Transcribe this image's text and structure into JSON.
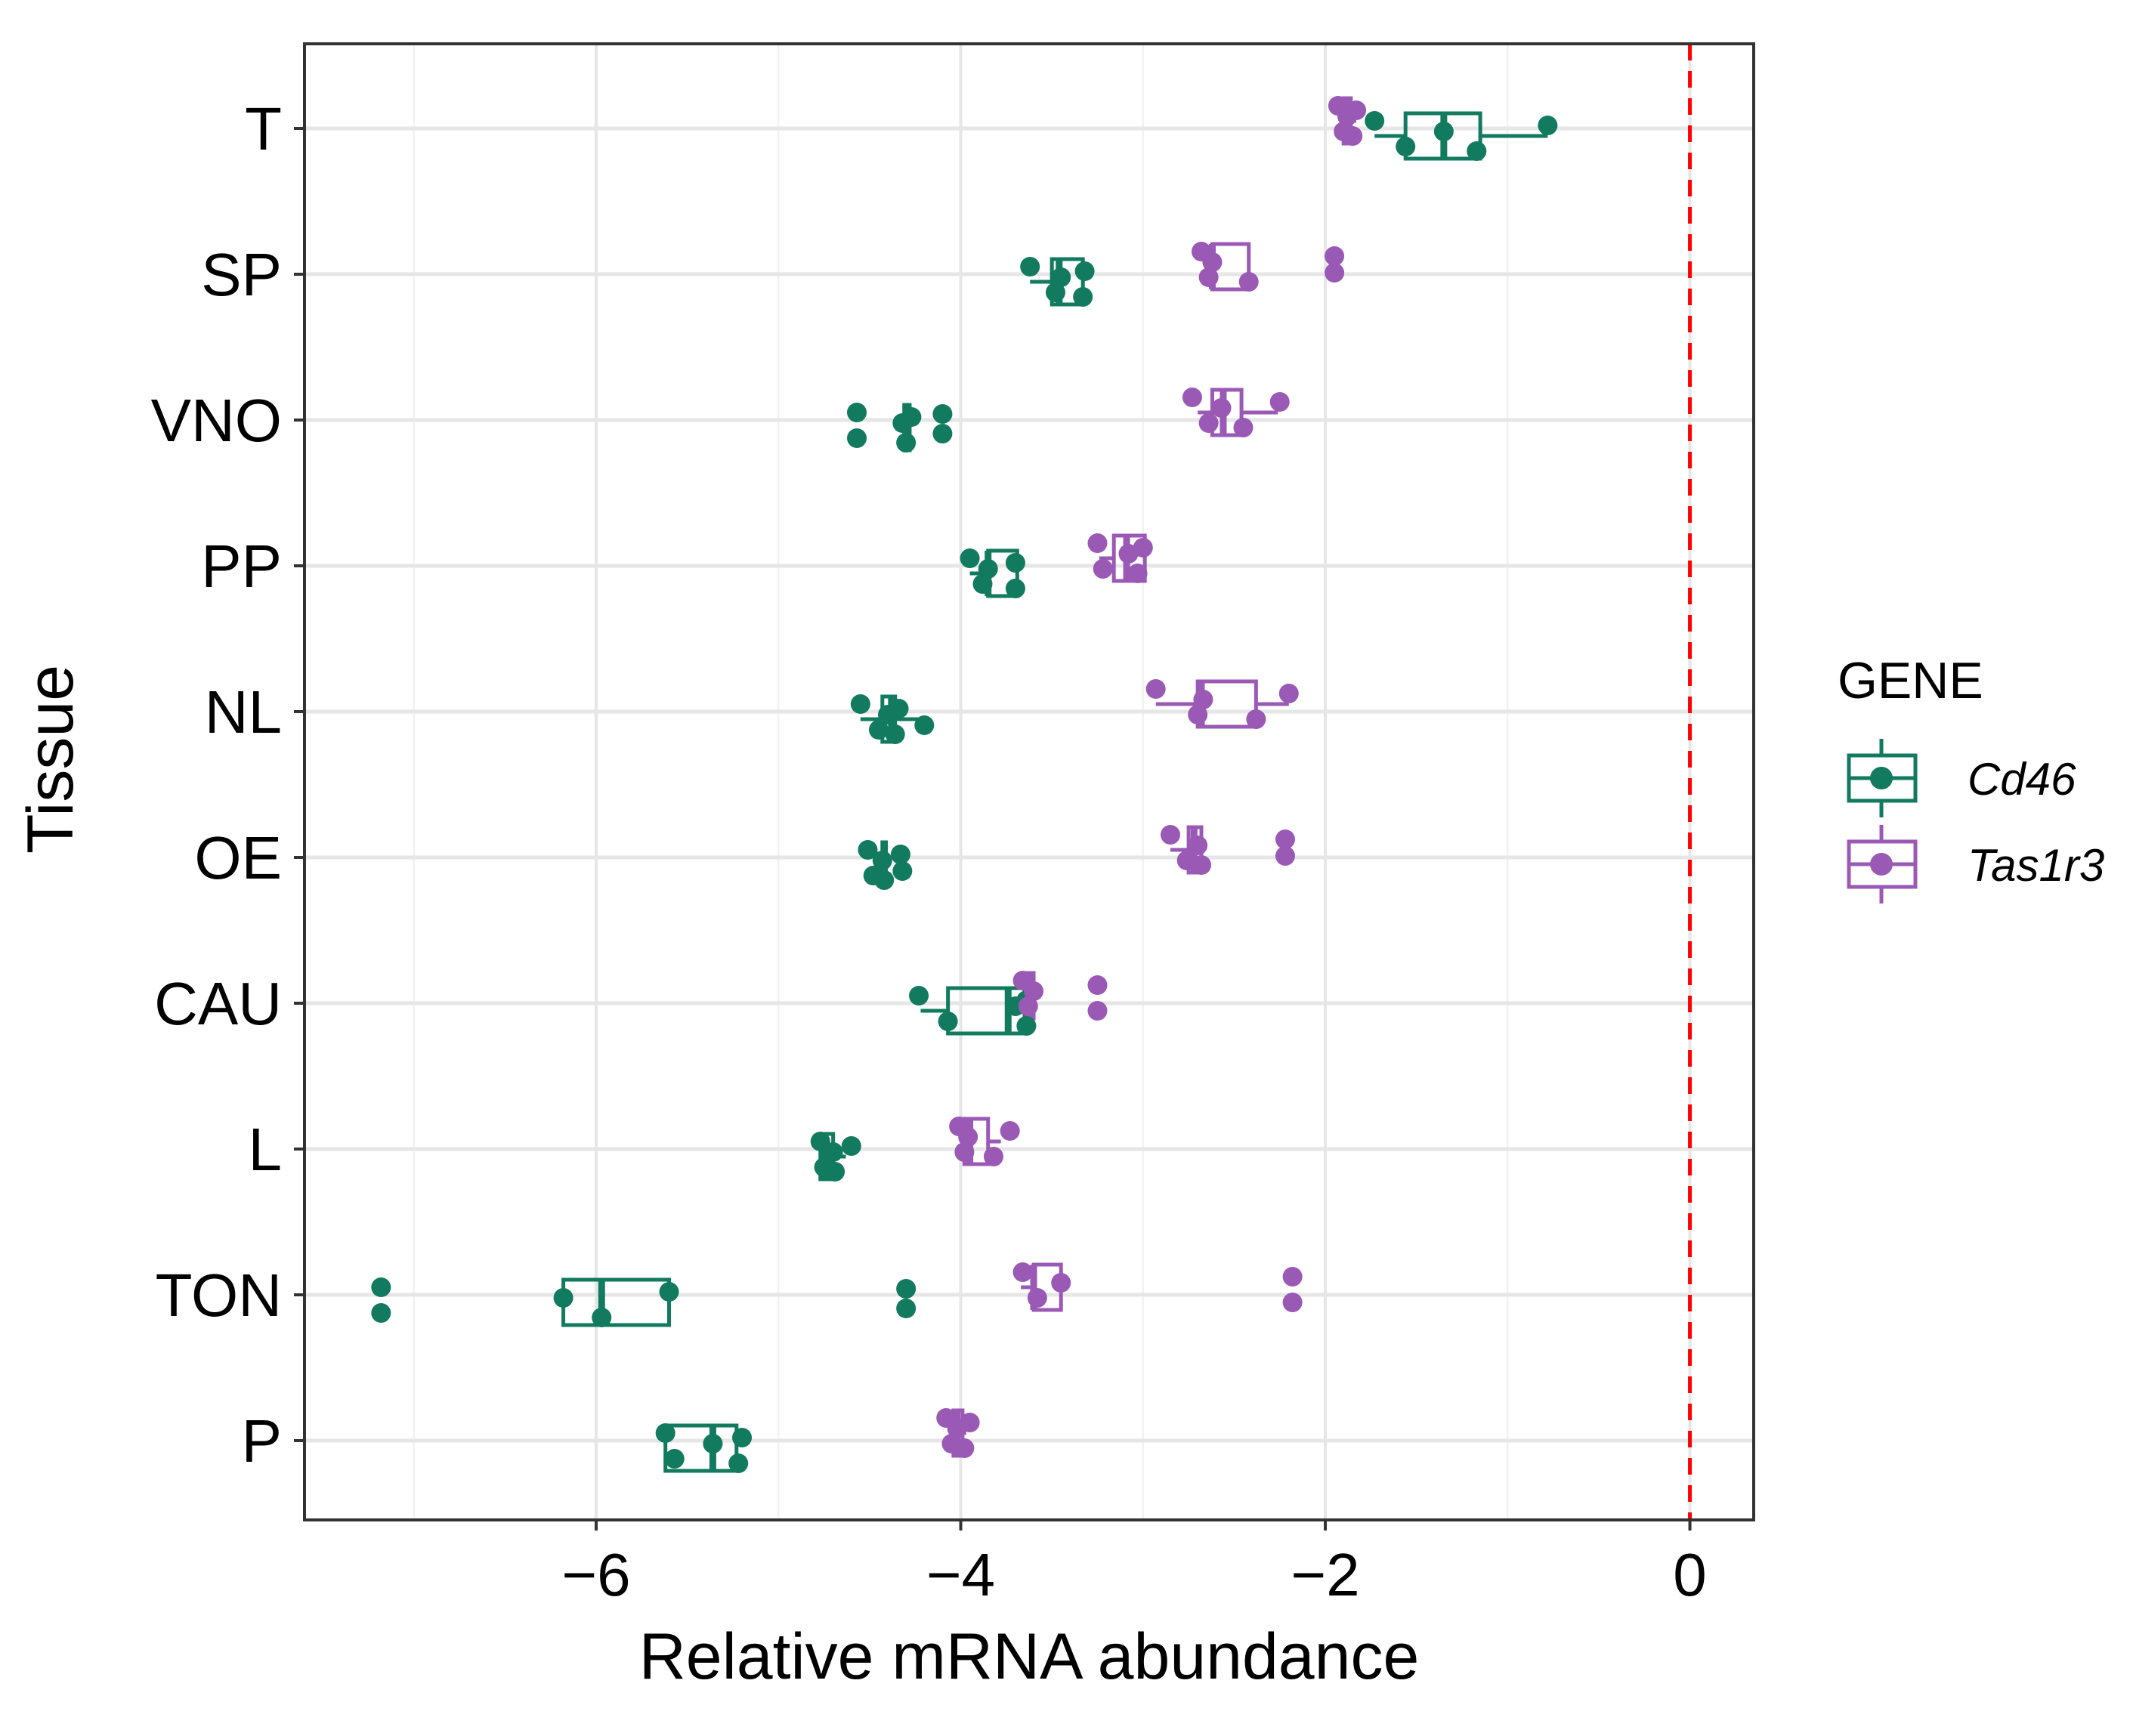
{
  "chart_data": {
    "type": "boxplot",
    "orientation": "horizontal",
    "xlabel": "Relative mRNA abundance",
    "ylabel": "Tissue",
    "xlim": [
      -7.6,
      0.35
    ],
    "x_ticks": [
      -6,
      -4,
      -2,
      0
    ],
    "x_tick_labels": [
      "−6",
      "−4",
      "−2",
      "0"
    ],
    "reference_line": {
      "x": 0,
      "color": "#ff0000",
      "style": "dashed"
    },
    "grid": true,
    "categories": [
      "T",
      "SP",
      "VNO",
      "PP",
      "NL",
      "OE",
      "CAU",
      "L",
      "TON",
      "P"
    ],
    "legend": {
      "title": "GENE",
      "position": "right",
      "entries": [
        {
          "name": "Cd46",
          "color": "#127a5f"
        },
        {
          "name": "Tas1r3",
          "color": "#9b59b6"
        }
      ]
    },
    "series": [
      {
        "name": "Cd46",
        "color": "#127a5f",
        "boxes": [
          {
            "tissue": "T",
            "whisker_low": -1.73,
            "q1": -1.56,
            "median": -1.35,
            "q3": -1.15,
            "whisker_high": -0.78
          },
          {
            "tissue": "SP",
            "whisker_low": -3.62,
            "q1": -3.5,
            "median": -3.46,
            "q3": -3.33,
            "whisker_high": -3.32
          },
          {
            "tissue": "VNO",
            "whisker_low": -4.31,
            "q1": -4.31,
            "median": -4.3,
            "q3": -4.28,
            "whisker_high": -4.28
          },
          {
            "tissue": "PP",
            "whisker_low": -3.95,
            "q1": -3.85,
            "median": -3.85,
            "q3": -3.69,
            "whisker_high": -3.69
          },
          {
            "tissue": "NL",
            "whisker_low": -4.55,
            "q1": -4.43,
            "median": -4.38,
            "q3": -4.36,
            "whisker_high": -4.2
          },
          {
            "tissue": "OE",
            "whisker_low": -4.43,
            "q1": -4.43,
            "median": -4.42,
            "q3": -4.41,
            "whisker_high": -4.41
          },
          {
            "tissue": "CAU",
            "whisker_low": -4.22,
            "q1": -4.07,
            "median": -3.74,
            "q3": -3.65,
            "whisker_high": -3.64
          },
          {
            "tissue": "L",
            "whisker_low": -4.77,
            "q1": -4.77,
            "median": -4.75,
            "q3": -4.7,
            "whisker_high": -4.63
          },
          {
            "tissue": "TON",
            "whisker_low": -6.18,
            "q1": -6.18,
            "median": -5.97,
            "q3": -5.6,
            "whisker_high": -5.6
          },
          {
            "tissue": "P",
            "whisker_low": -5.62,
            "q1": -5.62,
            "median": -5.36,
            "q3": -5.23,
            "whisker_high": -5.23
          }
        ],
        "points": [
          {
            "tissue": "T",
            "values": [
              -1.73,
              -1.56,
              -1.35,
              -1.17,
              -0.78
            ]
          },
          {
            "tissue": "SP",
            "values": [
              -3.62,
              -3.48,
              -3.45,
              -3.33,
              -3.32
            ]
          },
          {
            "tissue": "VNO",
            "values": [
              -4.57,
              -4.57,
              -4.32,
              -4.3,
              -4.27,
              -4.1,
              -4.1
            ]
          },
          {
            "tissue": "PP",
            "values": [
              -3.95,
              -3.88,
              -3.85,
              -3.7,
              -3.7
            ]
          },
          {
            "tissue": "NL",
            "values": [
              -4.55,
              -4.45,
              -4.4,
              -4.36,
              -4.34,
              -4.2
            ]
          },
          {
            "tissue": "OE",
            "values": [
              -4.51,
              -4.48,
              -4.43,
              -4.42,
              -4.33,
              -4.32
            ]
          },
          {
            "tissue": "CAU",
            "values": [
              -4.23,
              -4.07,
              -3.7,
              -3.64,
              -3.64
            ]
          },
          {
            "tissue": "L",
            "values": [
              -4.77,
              -4.75,
              -4.7,
              -4.69,
              -4.6
            ]
          },
          {
            "tissue": "TON",
            "values": [
              -7.18,
              -7.18,
              -6.18,
              -5.97,
              -5.6,
              -4.3,
              -4.3
            ]
          },
          {
            "tissue": "P",
            "values": [
              -5.62,
              -5.57,
              -5.36,
              -5.22,
              -5.2
            ]
          }
        ]
      },
      {
        "name": "Tas1r3",
        "color": "#9b59b6",
        "boxes": [
          {
            "tissue": "T",
            "whisker_low": -1.92,
            "q1": -1.9,
            "median": -1.88,
            "q3": -1.86,
            "whisker_high": -1.83
          },
          {
            "tissue": "SP",
            "whisker_low": -2.65,
            "q1": -2.62,
            "median": -2.62,
            "q3": -2.42,
            "whisker_high": -2.42
          },
          {
            "tissue": "VNO",
            "whisker_low": -2.7,
            "q1": -2.62,
            "median": -2.56,
            "q3": -2.46,
            "whisker_high": -2.26
          },
          {
            "tissue": "PP",
            "whisker_low": -3.24,
            "q1": -3.16,
            "median": -3.09,
            "q3": -2.99,
            "whisker_high": -2.99
          },
          {
            "tissue": "NL",
            "whisker_low": -2.93,
            "q1": -2.7,
            "median": -2.68,
            "q3": -2.38,
            "whisker_high": -2.2
          },
          {
            "tissue": "OE",
            "whisker_low": -2.85,
            "q1": -2.75,
            "median": -2.72,
            "q3": -2.68,
            "whisker_high": -2.68
          },
          {
            "tissue": "CAU",
            "whisker_low": -3.64,
            "q1": -3.64,
            "median": -3.62,
            "q3": -3.6,
            "whisker_high": -3.6
          },
          {
            "tissue": "L",
            "whisker_low": -4.0,
            "q1": -3.98,
            "median": -3.95,
            "q3": -3.85,
            "whisker_high": -3.78
          },
          {
            "tissue": "TON",
            "whisker_low": -3.67,
            "q1": -3.6,
            "median": -3.6,
            "q3": -3.45,
            "whisker_high": -3.45
          },
          {
            "tissue": "P",
            "whisker_low": -4.05,
            "q1": -4.04,
            "median": -4.02,
            "q3": -3.99,
            "whisker_high": -3.97
          }
        ],
        "points": [
          {
            "tissue": "T",
            "values": [
              -1.93,
              -1.9,
              -1.88,
              -1.85,
              -1.83
            ]
          },
          {
            "tissue": "SP",
            "values": [
              -2.68,
              -2.64,
              -2.62,
              -2.42,
              -1.95,
              -1.95
            ]
          },
          {
            "tissue": "VNO",
            "values": [
              -2.73,
              -2.64,
              -2.57,
              -2.45,
              -2.25
            ]
          },
          {
            "tissue": "PP",
            "values": [
              -3.25,
              -3.22,
              -3.08,
              -3.03,
              -3.0
            ]
          },
          {
            "tissue": "NL",
            "values": [
              -2.93,
              -2.7,
              -2.67,
              -2.38,
              -2.2
            ]
          },
          {
            "tissue": "OE",
            "values": [
              -2.85,
              -2.76,
              -2.7,
              -2.68,
              -2.22,
              -2.22
            ]
          },
          {
            "tissue": "CAU",
            "values": [
              -3.66,
              -3.63,
              -3.6,
              -3.25,
              -3.25
            ]
          },
          {
            "tissue": "L",
            "values": [
              -4.01,
              -3.98,
              -3.96,
              -3.82,
              -3.73
            ]
          },
          {
            "tissue": "TON",
            "values": [
              -3.66,
              -3.58,
              -3.45,
              -2.18,
              -2.18
            ]
          },
          {
            "tissue": "P",
            "values": [
              -4.08,
              -4.05,
              -4.02,
              -3.98,
              -3.95
            ]
          }
        ]
      }
    ]
  }
}
